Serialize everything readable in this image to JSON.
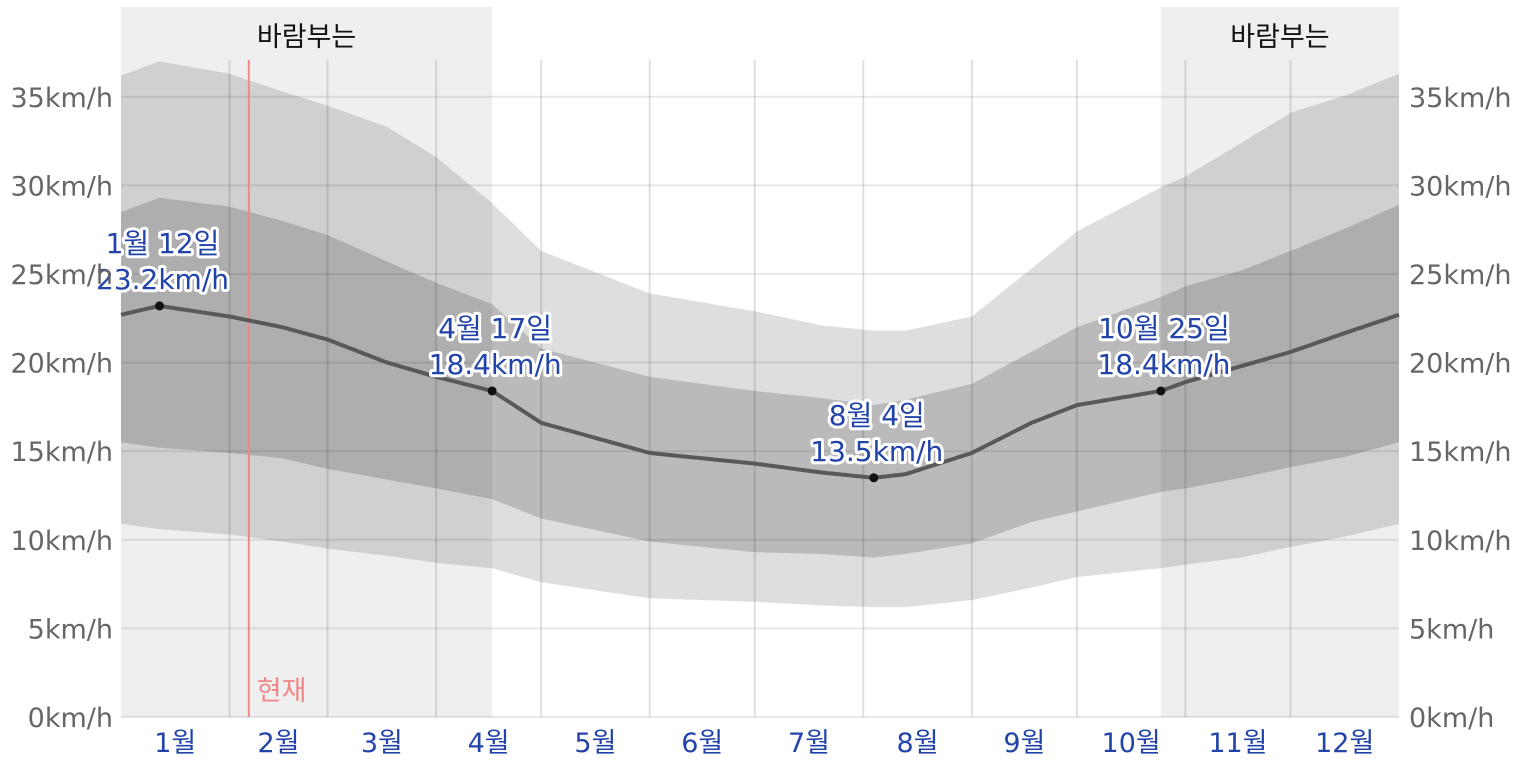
{
  "chart_data": {
    "type": "area",
    "title": "",
    "ylim": [
      0,
      40
    ],
    "y_ticks": [
      {
        "value": 0,
        "label": "0km/h"
      },
      {
        "value": 5,
        "label": "5km/h"
      },
      {
        "value": 10,
        "label": "10km/h"
      },
      {
        "value": 15,
        "label": "15km/h"
      },
      {
        "value": 20,
        "label": "20km/h"
      },
      {
        "value": 25,
        "label": "25km/h"
      },
      {
        "value": 30,
        "label": "30km/h"
      },
      {
        "value": 35,
        "label": "35km/h"
      }
    ],
    "months": [
      "1월",
      "2월",
      "3월",
      "4월",
      "5월",
      "6월",
      "7월",
      "8월",
      "9월",
      "10월",
      "11월",
      "12월"
    ],
    "windy_season_label": "바람부는",
    "windy_periods": [
      {
        "start_day": 0,
        "end_day": 106
      },
      {
        "start_day": 297,
        "end_day": 365
      }
    ],
    "now_label": "현재",
    "now_day": 36.5,
    "series": {
      "x_day": [
        0,
        11,
        31,
        46,
        59,
        76,
        90,
        106,
        120,
        151,
        181,
        200,
        215,
        224,
        243,
        260,
        273,
        297,
        304,
        320,
        334,
        350,
        365
      ],
      "average": [
        22.7,
        23.2,
        22.6,
        22.0,
        21.3,
        20.0,
        19.2,
        18.4,
        16.6,
        14.9,
        14.3,
        13.8,
        13.5,
        13.7,
        14.9,
        16.6,
        17.6,
        18.4,
        18.9,
        19.8,
        20.6,
        21.7,
        22.7
      ],
      "p25": [
        15.5,
        15.2,
        14.9,
        14.6,
        14.0,
        13.4,
        12.9,
        12.3,
        11.2,
        9.9,
        9.3,
        9.2,
        9.0,
        9.2,
        9.8,
        11.0,
        11.6,
        12.7,
        12.9,
        13.5,
        14.1,
        14.7,
        15.5
      ],
      "p75": [
        28.5,
        29.3,
        28.8,
        28.0,
        27.2,
        25.7,
        24.5,
        23.3,
        20.8,
        19.2,
        18.4,
        18.0,
        17.6,
        17.9,
        18.8,
        20.6,
        22.0,
        23.7,
        24.3,
        25.2,
        26.3,
        27.6,
        28.9
      ],
      "p10": [
        10.9,
        10.6,
        10.3,
        9.9,
        9.5,
        9.1,
        8.7,
        8.4,
        7.6,
        6.7,
        6.5,
        6.3,
        6.2,
        6.2,
        6.6,
        7.3,
        7.9,
        8.4,
        8.6,
        9.0,
        9.6,
        10.2,
        10.9
      ],
      "p90": [
        36.2,
        37.0,
        36.3,
        35.3,
        34.5,
        33.3,
        31.6,
        29.0,
        26.3,
        23.9,
        22.9,
        22.1,
        21.8,
        21.8,
        22.6,
        25.3,
        27.4,
        29.9,
        30.5,
        32.4,
        34.1,
        35.1,
        36.3
      ]
    },
    "annotations": [
      {
        "day": 11,
        "value": 23.2,
        "date": "1월 12일",
        "speed": "23.2km/h"
      },
      {
        "day": 106,
        "value": 18.4,
        "date": "4월 17일",
        "speed": "18.4km/h"
      },
      {
        "day": 215,
        "value": 13.5,
        "date": "8월 4일",
        "speed": "13.5km/h"
      },
      {
        "day": 297,
        "value": 18.4,
        "date": "10월 25일",
        "speed": "18.4km/h"
      }
    ]
  }
}
